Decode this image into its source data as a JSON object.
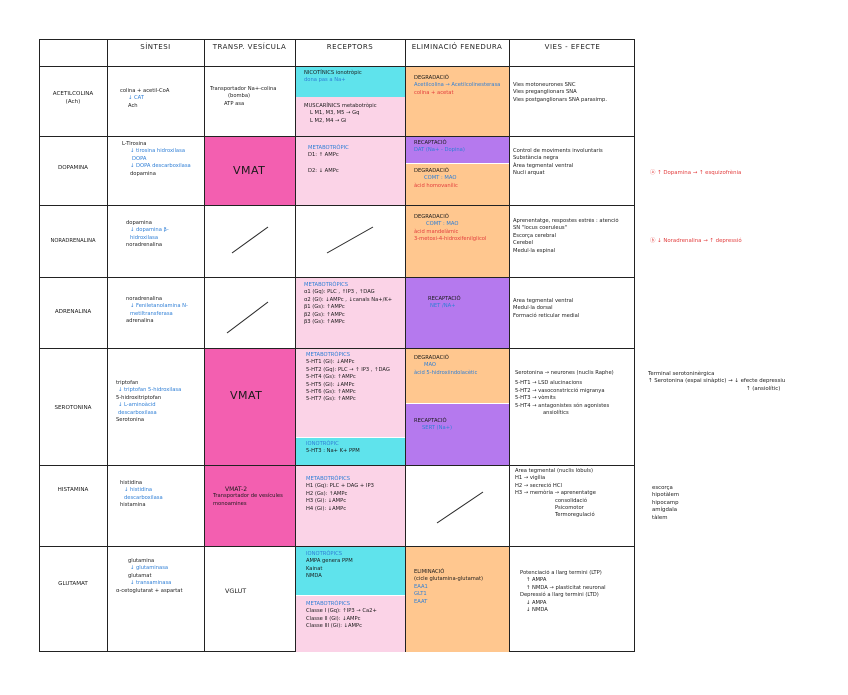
{
  "headers": [
    "SÍNTESI",
    "TRANSP. VESÍCULA",
    "RECEPTORS",
    "ELIMINACIÓ FENEDURA",
    "VIES - EFECTE"
  ],
  "rows": [
    {
      "name": [
        "ACETILCOLINA",
        "(Ach)"
      ],
      "sintesi": [
        "colina + acetil-CoA",
        "CAT",
        "Ach"
      ],
      "transport": [
        "Transportador Na+-colina",
        "(bomba)",
        "ATP asa"
      ],
      "receptors_top": [
        "NICOTÍNICS ionotròpic",
        "dona pas a Na+"
      ],
      "receptors_bottom": [
        "MUSCARÍNICS metabotròpic",
        "L M1, M3, M5 → Gq",
        "L M2, M4 → Gi"
      ],
      "elim": [
        "DEGRADACIÓ",
        "Acetilcolina → Acetilcolinesterasa",
        "colina + acetat"
      ],
      "vies": [
        "Vies motoneurones SNC",
        "Vies preganglionars SNA",
        "Vies postganglionars SNA parasimp."
      ]
    },
    {
      "name": [
        "DOPAMINA"
      ],
      "sintesi": [
        "L-Tirosina",
        "tirosina hidroxilasa",
        "DOPA",
        "DOPA descarboxilasa",
        "dopamina"
      ],
      "transport": [
        "VMAT"
      ],
      "receptors": [
        "METABOTRÒPIC",
        "D1: ↑ AMPc",
        "D2: ↓ AMPc"
      ],
      "elim_top": [
        "RECAPTACIÓ",
        "DAT (Na+ - Dopina)"
      ],
      "elim_bottom": [
        "DEGRADACIÓ",
        "COMT : MAO",
        "àcid homovanílic"
      ],
      "vies": [
        "Control de moviments involuntaris",
        "Substància negra",
        "Àrea tegmental ventral",
        "Nucli arquat"
      ],
      "side": [
        "↑ Dopamina → ↑ esquizofrènia"
      ]
    },
    {
      "name": [
        "NORADRENALINA"
      ],
      "sintesi": [
        "dopamina",
        "dopamina β-hidroxilasa",
        "noradrenalina"
      ],
      "elim": [
        "DEGRADACIÓ",
        "COMT : MAO",
        "àcid mandelàmic",
        "3-metoxi-4-hidroxifenilglicol"
      ],
      "vies": [
        "Aprenentatge, respostes estrès : atenció",
        "SN \"locus coeruleus\"",
        "Escorça cerebral",
        "Cerebel",
        "Medul·la espinal"
      ],
      "side": [
        "↓ Noradrenalina → ↑ depressió"
      ]
    },
    {
      "name": [
        "ADRENALINA"
      ],
      "sintesi": [
        "noradrenalina",
        "Feniletanolamina N-metiltransferasa",
        "adrenalina"
      ],
      "receptors": [
        "METABOTRÒPICS",
        "α1 (Gq): PLC , ↑IP3 , ↑DAG",
        "α2 (Gi): ↓AMPc , ↓canals Na+/K+",
        "β1 (Gs): ↑AMPc",
        "β2 (Gs): ↑AMPc",
        "β3 (Gs): ↑AMPc"
      ],
      "elim": [
        "RECAPTACIÓ",
        "NET /NA+"
      ],
      "vies": [
        "Àrea tegmental ventral",
        "Medul·la dorsal",
        "Formació reticular medial"
      ]
    },
    {
      "name": [
        "SEROTONINA"
      ],
      "sintesi": [
        "triptofan",
        "triptofan 5-hidroxilasa",
        "5-hidroxitriptofan",
        "L-aminoàcid descarboxilasa",
        "Serotonina"
      ],
      "transport": [
        "VMAT"
      ],
      "receptors_top": [
        "METABOTRÒPICS",
        "5-HT1 (Gi): ↓AMPc",
        "5-HT2 (Gq): PLC → ↑ IP3 , ↑DAG",
        "5-HT4 (Gs): ↑AMPc",
        "5-HT5 (Gi): ↓AMPc",
        "5-HT6 (Gs): ↑AMPc",
        "5-HT7 (Gs): ↑AMPc"
      ],
      "receptors_bottom": [
        "IONOTRÒPIC",
        "5-HT3 : Na+ K+ PPM"
      ],
      "elim_top": [
        "DEGRADACIÓ",
        "MAO",
        "àcid 5-hidroxiindolacètic"
      ],
      "elim_bottom": [
        "RECAPTACIÓ",
        "SERT (Na+)"
      ],
      "vies": [
        "Serotonina → neurones (nuclis Raphe)",
        "5-HT1 → LSD alucinacions",
        "5-HT2 → vasoconstricció migranya",
        "5-HT3 → vòmits",
        "5-HT4 → antagonistes són agonistes",
        "ansiolítics"
      ],
      "side": [
        "Terminal serotoninèrgica",
        "↑ Serotonina (espai sinàptic) → ↓ efecte depressiu",
        "↑ (ansiolític)"
      ]
    },
    {
      "name": [
        "HISTAMINA"
      ],
      "sintesi": [
        "histidina",
        "histidina descarboxilasa",
        "histamina"
      ],
      "transport": [
        "VMAT-2",
        "Transportador de vesícules monoamines"
      ],
      "receptors": [
        "METABOTRÒPICS",
        "H1 (Gq): PLC + DAG + IP3",
        "H2 (Gs): ↑AMPc",
        "H3 (Gi): ↓AMPc",
        "H4 (Gi): ↓AMPc"
      ],
      "vies": [
        "Àrea tegmental (nuclis lòbuls)",
        "H1 → vigília",
        "H2 → secreció HCl",
        "H3 → memòria → aprenentatge",
        "consolidació",
        "Psicomotor",
        "Termoregulació"
      ],
      "side": [
        "escorça",
        "hipotàlem",
        "hipocamp",
        "amígdala",
        "tàlem"
      ]
    },
    {
      "name": [
        "GLUTAMAT"
      ],
      "sintesi": [
        "glutamina",
        "glutaminasa",
        "glutamat",
        "transaminasa",
        "α-cetoglutarat + aspartat"
      ],
      "transport": [
        "VGLUT"
      ],
      "receptors_top": [
        "IONOTRÒPICS",
        "AMPA genera PPM",
        "Kainat",
        "NMDA"
      ],
      "receptors_bottom": [
        "METABOTRÒPICS",
        "Classe I (Gq): ↑IP3 → Ca2+",
        "Classe II (Gi): ↓AMPc",
        "Classe III (Gi): ↓AMPc"
      ],
      "elim": [
        "ELIMINACIÓ",
        "(cicle glutamina-glutamat)",
        "EAA1",
        "GLT1",
        "EAAT"
      ],
      "vies": [
        "Potenciació a llarg termini (LTP)",
        "↑ AMPA",
        "↑ NMDA → plasticitat neuronal",
        "Depressió a llarg termini (LTD)",
        "↓ AMPA",
        "↓ NMDA"
      ]
    }
  ]
}
